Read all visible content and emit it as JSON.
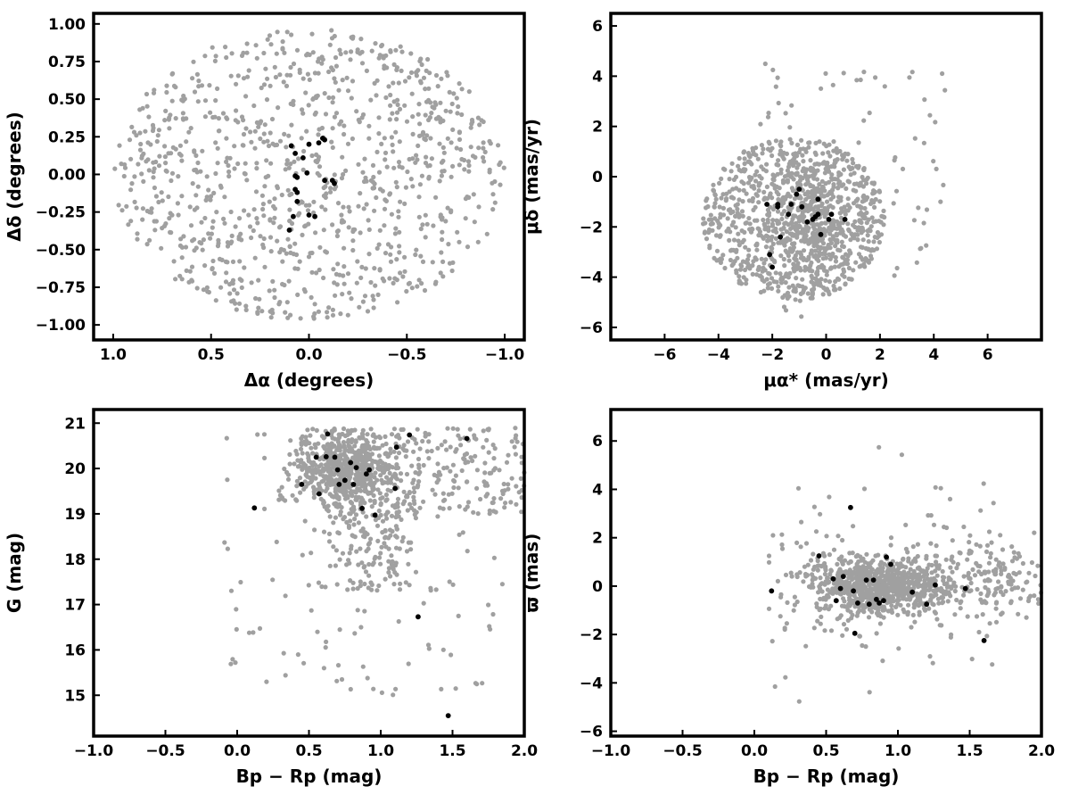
{
  "colors": {
    "field": "#a0a0a0",
    "members": "#000000",
    "frame": "#000000"
  },
  "chart_data": [
    {
      "type": "scatter",
      "xlabel": "Δα (degrees)",
      "ylabel": "Δδ (degrees)",
      "xlim": [
        1.1,
        -1.1
      ],
      "ylim": [
        -1.1,
        1.07
      ],
      "x_ticks": [
        1.0,
        0.5,
        0.0,
        -0.5,
        -1.0
      ],
      "x_tick_labels": [
        "1.0",
        "0.5",
        "0.0",
        "−0.5",
        "−1.0"
      ],
      "y_ticks": [
        -1.0,
        -0.75,
        -0.5,
        -0.25,
        0.0,
        0.25,
        0.5,
        0.75,
        1.0
      ],
      "y_tick_labels": [
        "−1.00",
        "−0.75",
        "−0.50",
        "−0.25",
        "0.00",
        "0.25",
        "0.50",
        "0.75",
        "1.00"
      ],
      "grid": false,
      "field_stars": {
        "distribution": "uniform_disk",
        "center": [
          0,
          0
        ],
        "radius": 1.0,
        "count": 1000
      },
      "members": {
        "x": [
          0.07,
          0.03,
          0.0,
          -0.05,
          -0.07,
          -0.08,
          -0.08,
          -0.12,
          -0.13,
          0.06,
          0.07,
          0.06,
          0.06,
          0.0,
          -0.03,
          0.01,
          0.1,
          0.08,
          0.07,
          0.09
        ],
        "y": [
          0.14,
          0.11,
          0.2,
          0.21,
          0.24,
          0.23,
          -0.04,
          -0.04,
          -0.06,
          -0.02,
          -0.1,
          -0.12,
          -0.18,
          -0.27,
          -0.28,
          0.01,
          -0.37,
          -0.28,
          -0.01,
          0.19
        ]
      }
    },
    {
      "type": "scatter",
      "xlabel": "μα* (mas/yr)",
      "ylabel": "μδ (mas/yr)",
      "xlim": [
        -8,
        8
      ],
      "ylim": [
        -6.5,
        6.5
      ],
      "x_ticks": [
        -6,
        -4,
        -2,
        0,
        2,
        4,
        6
      ],
      "x_tick_labels": [
        "−6",
        "−4",
        "−2",
        "0",
        "2",
        "4",
        "6"
      ],
      "y_ticks": [
        -6,
        -4,
        -2,
        0,
        2,
        4,
        6
      ],
      "y_tick_labels": [
        "−6",
        "−4",
        "−2",
        "0",
        "2",
        "4",
        "6"
      ],
      "grid": false,
      "field_stars": {
        "distribution": "disk_plus_sparse",
        "center": [
          -1.2,
          -1.7
        ],
        "radius": 3.4,
        "count": 1200
      },
      "members": {
        "x": [
          -2.2,
          -1.8,
          -1.8,
          -1.4,
          -1.3,
          -1.1,
          -1.0,
          -0.9,
          -0.7,
          -0.5,
          -0.4,
          -0.3,
          -0.2,
          0.1,
          0.2,
          0.7,
          -1.7,
          -2.1,
          -2.0,
          -0.3
        ],
        "y": [
          -1.1,
          -1.2,
          -1.1,
          -1.5,
          -1.1,
          -0.7,
          -0.5,
          -1.2,
          -1.8,
          -1.7,
          -1.6,
          -0.9,
          -2.3,
          -1.7,
          -1.5,
          -1.7,
          -2.4,
          -3.1,
          -3.6,
          -1.5
        ]
      }
    },
    {
      "type": "scatter",
      "xlabel": "Bp − Rp (mag)",
      "ylabel": "G (mag)",
      "xlim": [
        -1.0,
        2.0
      ],
      "ylim": [
        14.1,
        21.3
      ],
      "x_ticks": [
        -1.0,
        -0.5,
        0.0,
        0.5,
        1.0,
        1.5,
        2.0
      ],
      "x_tick_labels": [
        "−1.0",
        "−0.5",
        "0.0",
        "0.5",
        "1.0",
        "1.5",
        "2.0"
      ],
      "y_ticks": [
        15,
        16,
        17,
        18,
        19,
        20,
        21
      ],
      "y_tick_labels": [
        "15",
        "16",
        "17",
        "18",
        "19",
        "20",
        "21"
      ],
      "grid": false,
      "field_stars": {
        "distribution": "cmd",
        "count": 1100
      },
      "members": {
        "x": [
          0.12,
          0.45,
          0.55,
          0.57,
          0.62,
          0.63,
          0.68,
          0.7,
          0.71,
          0.75,
          0.79,
          0.81,
          0.83,
          0.87,
          0.9,
          0.92,
          0.96,
          1.1,
          1.11,
          1.2,
          1.26,
          1.47,
          1.6
        ],
        "y": [
          19.13,
          19.65,
          20.25,
          19.44,
          20.26,
          20.76,
          20.25,
          19.97,
          19.65,
          19.74,
          20.13,
          19.65,
          20.02,
          19.12,
          19.88,
          19.97,
          18.97,
          19.56,
          20.47,
          20.74,
          16.73,
          14.55,
          20.66
        ]
      }
    },
    {
      "type": "scatter",
      "xlabel": "Bp − Rp (mag)",
      "ylabel": "ϖ (mas)",
      "xlim": [
        -1.0,
        2.0
      ],
      "ylim": [
        -6.2,
        7.3
      ],
      "x_ticks": [
        -1.0,
        -0.5,
        0.0,
        0.5,
        1.0,
        1.5,
        2.0
      ],
      "x_tick_labels": [
        "−1.0",
        "−0.5",
        "0.0",
        "0.5",
        "1.0",
        "1.5",
        "2.0"
      ],
      "y_ticks": [
        -6,
        -4,
        -2,
        0,
        2,
        4,
        6
      ],
      "y_tick_labels": [
        "−6",
        "−4",
        "−2",
        "0",
        "2",
        "4",
        "6"
      ],
      "grid": false,
      "field_stars": {
        "distribution": "parallax_band",
        "count": 1100
      },
      "members": {
        "x": [
          0.12,
          0.45,
          0.55,
          0.57,
          0.6,
          0.62,
          0.67,
          0.69,
          0.7,
          0.72,
          0.78,
          0.8,
          0.83,
          0.85,
          0.87,
          0.9,
          0.92,
          0.95,
          1.1,
          1.2,
          1.26,
          1.47,
          1.6
        ],
        "y": [
          -0.2,
          1.25,
          0.3,
          -0.6,
          -0.1,
          0.4,
          3.25,
          -0.2,
          -1.95,
          -0.7,
          0.25,
          -0.75,
          0.25,
          -0.55,
          -0.7,
          -0.6,
          1.2,
          0.9,
          -0.25,
          -0.75,
          0.05,
          -0.1,
          -2.25
        ]
      }
    }
  ]
}
